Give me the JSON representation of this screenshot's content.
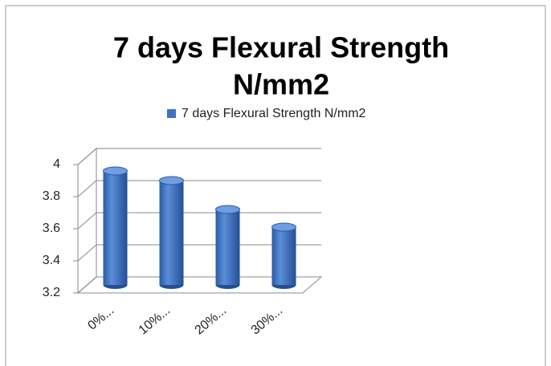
{
  "chart_data": {
    "type": "bar3d",
    "title_lines": [
      "7 days Flexural Strength",
      "N/mm2"
    ],
    "categories": [
      "0%...",
      "10%...",
      "20%...",
      "30%..."
    ],
    "series": [
      {
        "name": "7 days Flexural Strength   N/mm2",
        "color": "#3f73c0",
        "values": [
          3.91,
          3.85,
          3.67,
          3.56
        ]
      }
    ],
    "ylim": [
      3.2,
      4
    ],
    "yticks": [
      3.2,
      3.4,
      3.6,
      3.8,
      4
    ],
    "grid": true,
    "legend": "top"
  }
}
